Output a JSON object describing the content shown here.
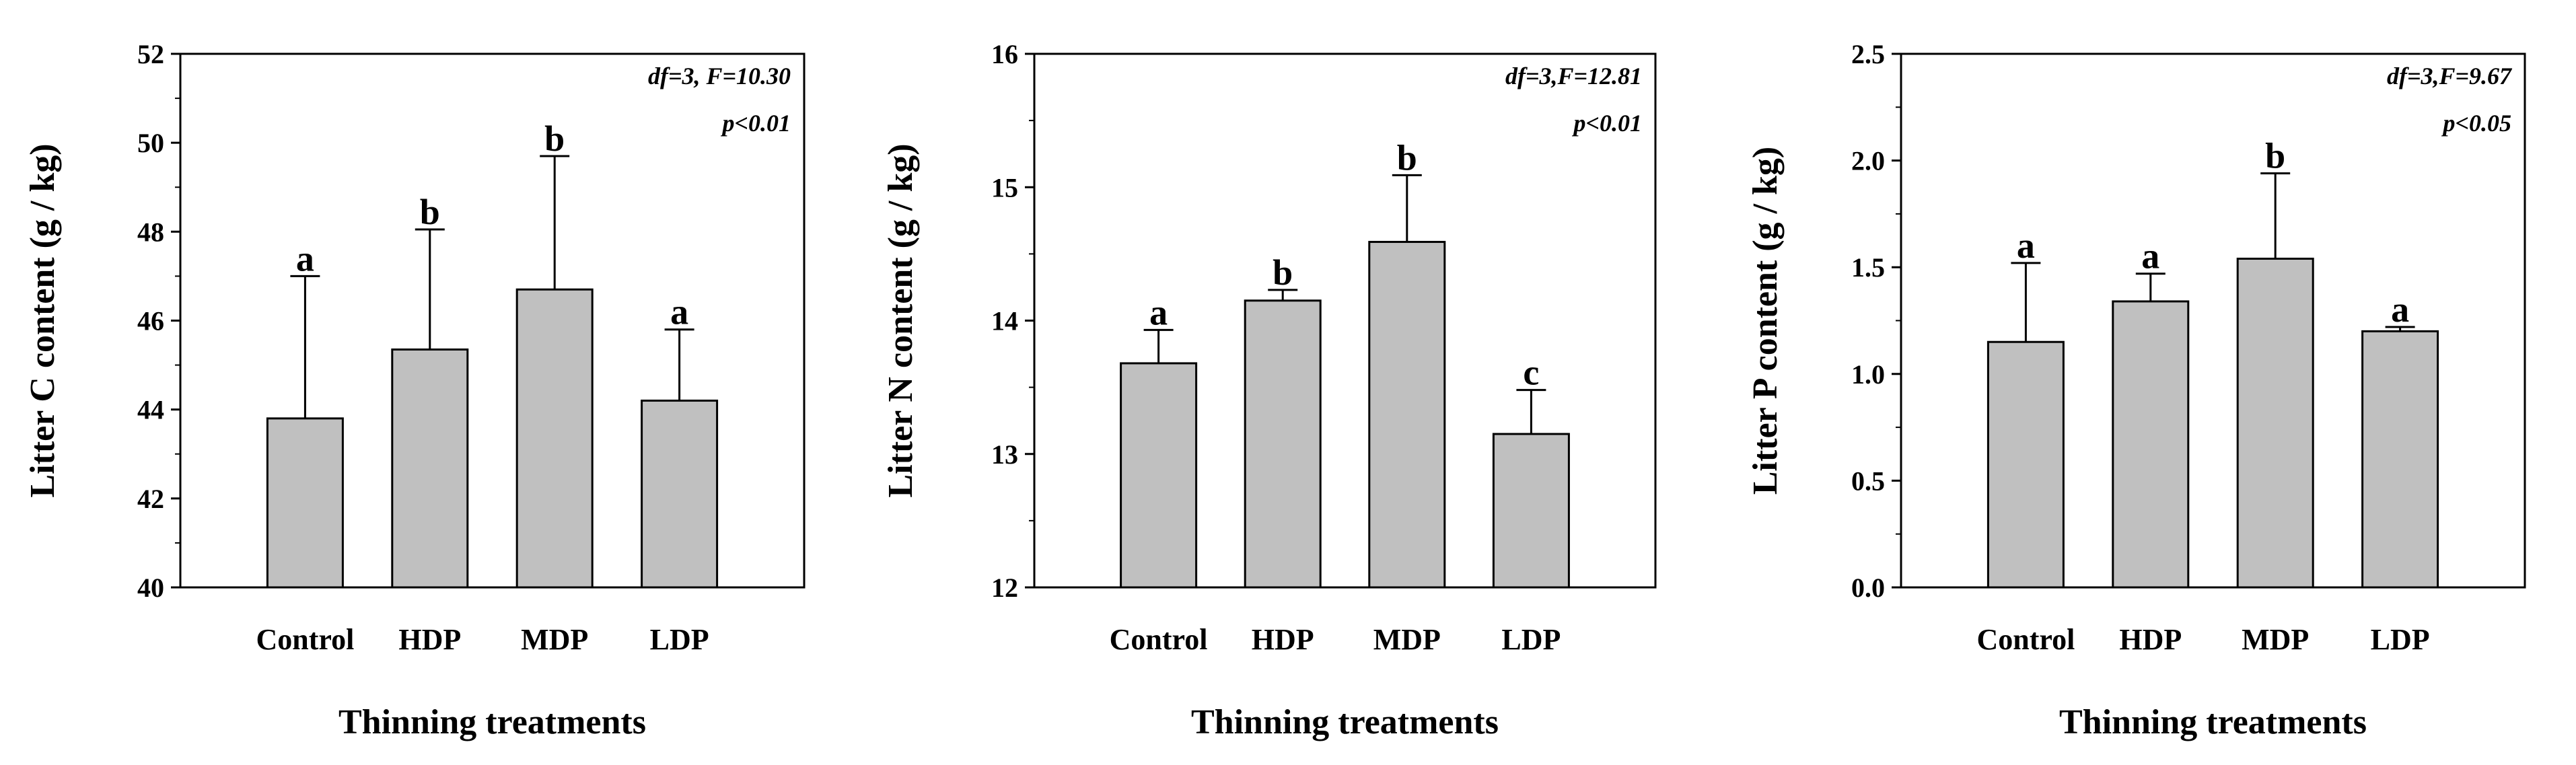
{
  "chart_data": [
    {
      "type": "bar",
      "categories": [
        "Control",
        "HDP",
        "MDP",
        "LDP"
      ],
      "values": [
        43.8,
        45.35,
        46.7,
        44.2
      ],
      "errors": [
        3.2,
        2.7,
        3.0,
        1.6
      ],
      "significance": [
        "a",
        "b",
        "b",
        "a"
      ],
      "ylabel": "Litter C content (g / kg)",
      "xlabel": "Thinning treatments",
      "ylim": [
        40,
        52
      ],
      "yticks": [
        40,
        42,
        44,
        46,
        48,
        50,
        52
      ],
      "stats": [
        "df=3, F=10.30",
        "p<0.01"
      ],
      "bar_color": "#c0c0c0"
    },
    {
      "type": "bar",
      "categories": [
        "Control",
        "HDP",
        "MDP",
        "LDP"
      ],
      "values": [
        13.68,
        14.15,
        14.59,
        13.15
      ],
      "errors": [
        0.25,
        0.08,
        0.5,
        0.33
      ],
      "significance": [
        "a",
        "b",
        "b",
        "c"
      ],
      "ylabel": "Litter N content (g / kg)",
      "xlabel": "Thinning treatments",
      "ylim": [
        12,
        16
      ],
      "yticks": [
        12,
        13,
        14,
        15,
        16
      ],
      "stats": [
        "df=3,F=12.81",
        "p<0.01"
      ],
      "bar_color": "#c0c0c0"
    },
    {
      "type": "bar",
      "categories": [
        "Control",
        "HDP",
        "MDP",
        "LDP"
      ],
      "values": [
        1.15,
        1.34,
        1.54,
        1.2
      ],
      "errors": [
        0.37,
        0.13,
        0.4,
        0.02
      ],
      "significance": [
        "a",
        "a",
        "b",
        "a"
      ],
      "ylabel": "Litter P content (g / kg)",
      "xlabel": "Thinning treatments",
      "ylim": [
        0.0,
        2.5
      ],
      "yticks": [
        "0.0",
        "0.5",
        "1.0",
        "1.5",
        "2.0",
        "2.5"
      ],
      "stats": [
        "df=3,F=9.67",
        "p<0.05"
      ],
      "bar_color": "#c0c0c0"
    }
  ]
}
